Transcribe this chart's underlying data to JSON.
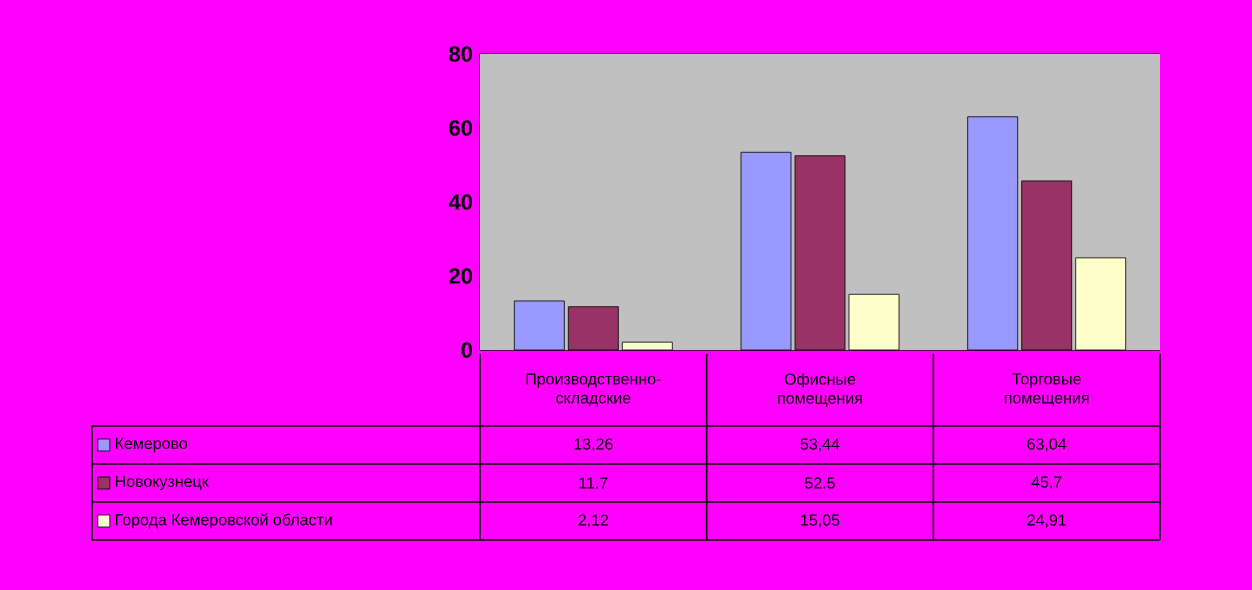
{
  "chart_data": {
    "type": "bar",
    "categories": [
      "Производственно-складские",
      "Офисные помещения",
      "Торговые помещения"
    ],
    "series": [
      {
        "name": "Кемерово",
        "color": "#9999ff",
        "values": [
          13.26,
          53.44,
          63.04
        ],
        "value_labels": [
          "13,26",
          "53,44",
          "63,04"
        ]
      },
      {
        "name": "Новокузнецк",
        "color": "#993366",
        "values": [
          11.7,
          52.5,
          45.7
        ],
        "value_labels": [
          "11.7",
          "52.5",
          "45,7"
        ]
      },
      {
        "name": "Города Кемеровской области",
        "color": "#ffffcc",
        "values": [
          2.12,
          15.05,
          24.91
        ],
        "value_labels": [
          "2,12",
          "15,05",
          "24,91"
        ]
      }
    ],
    "ylim": [
      0,
      80
    ],
    "yticks": [
      0,
      20,
      40,
      60,
      80
    ],
    "grid": "y",
    "legend": "bottom"
  }
}
